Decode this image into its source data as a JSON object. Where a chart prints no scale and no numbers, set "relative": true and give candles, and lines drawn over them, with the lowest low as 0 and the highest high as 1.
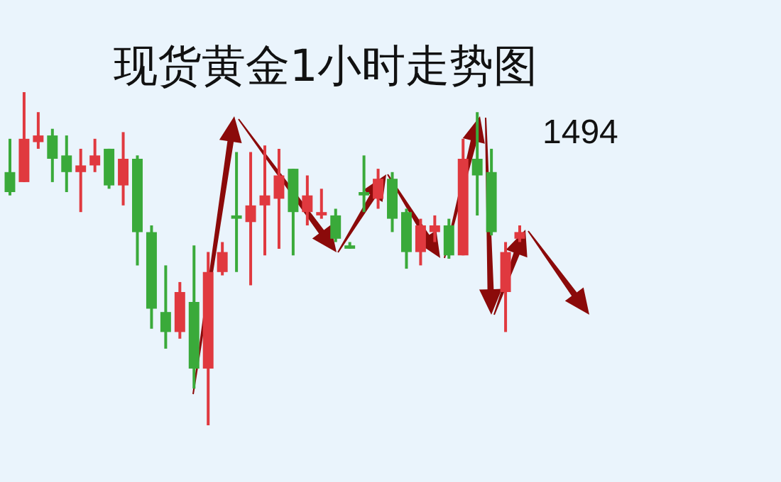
{
  "chart_data": {
    "type": "candlestick",
    "title": "现货黄金1小时走势图",
    "relative": true,
    "annotations": [
      "1494"
    ],
    "categories": [
      null,
      null,
      null,
      null,
      null,
      null,
      null,
      null,
      null,
      null,
      null,
      null,
      null,
      null,
      null,
      null,
      null,
      null,
      null,
      null,
      null,
      null,
      null,
      null,
      null,
      null,
      null,
      null,
      null,
      null,
      null,
      null,
      null,
      null,
      null,
      null,
      null
    ],
    "ohlc": [
      [
        0.76,
        0.86,
        0.69,
        0.7
      ],
      [
        0.73,
        1,
        0.73,
        0.86
      ],
      [
        0.85,
        0.94,
        0.83,
        0.87
      ],
      [
        0.87,
        0.89,
        0.73,
        0.8
      ],
      [
        0.81,
        0.87,
        0.7,
        0.76
      ],
      [
        0.76,
        0.83,
        0.64,
        0.78
      ],
      [
        0.78,
        0.86,
        0.76,
        0.81
      ],
      [
        0.83,
        0.83,
        0.71,
        0.72
      ],
      [
        0.72,
        0.88,
        0.66,
        0.8
      ],
      [
        0.8,
        0.81,
        0.48,
        0.58
      ],
      [
        0.58,
        0.6,
        0.29,
        0.35
      ],
      [
        0.34,
        0.48,
        0.23,
        0.28
      ],
      [
        0.28,
        0.43,
        0.26,
        0.4
      ],
      [
        0.37,
        0.54,
        0.11,
        0.17
      ],
      [
        0.17,
        0.52,
        0,
        0.46
      ],
      [
        0.46,
        0.55,
        0.45,
        0.52
      ],
      [
        0.63,
        0.82,
        0.46,
        0.62
      ],
      [
        0.61,
        0.82,
        0.42,
        0.66
      ],
      [
        0.66,
        0.84,
        0.51,
        0.69
      ],
      [
        0.68,
        0.83,
        0.53,
        0.75
      ],
      [
        0.77,
        0.77,
        0.51,
        0.64
      ],
      [
        0.64,
        0.75,
        0.6,
        0.69
      ],
      [
        0.63,
        0.71,
        0.62,
        0.64
      ],
      [
        0.63,
        0.65,
        0.55,
        0.56
      ],
      [
        0.54,
        0.55,
        0.53,
        0.53
      ],
      [
        0.7,
        0.81,
        0.64,
        0.69
      ],
      [
        0.68,
        0.77,
        0.65,
        0.74
      ],
      [
        0.74,
        0.76,
        0.58,
        0.62
      ],
      [
        0.64,
        0.65,
        0.47,
        0.52
      ],
      [
        0.52,
        0.62,
        0.48,
        0.6
      ],
      [
        0.58,
        0.63,
        0.55,
        0.6
      ],
      [
        0.6,
        0.62,
        0.5,
        0.51
      ],
      [
        0.51,
        0.86,
        0.51,
        0.8
      ],
      [
        0.8,
        0.94,
        0.63,
        0.75
      ],
      [
        0.76,
        0.83,
        0.57,
        0.58
      ],
      [
        0.4,
        0.55,
        0.28,
        0.52
      ],
      [
        0.56,
        0.6,
        0.55,
        0.58
      ]
    ],
    "colors": [
      "#3aaa3a",
      "#e0393f",
      "#e0393f",
      "#3aaa3a",
      "#3aaa3a",
      "#e0393f",
      "#e0393f",
      "#3aaa3a",
      "#e0393f",
      "#3aaa3a",
      "#3aaa3a",
      "#3aaa3a",
      "#e0393f",
      "#3aaa3a",
      "#e0393f",
      "#e0393f",
      "#3aaa3a",
      "#e0393f",
      "#e0393f",
      "#e0393f",
      "#3aaa3a",
      "#e0393f",
      "#e0393f",
      "#3aaa3a",
      "#3aaa3a",
      "#3aaa3a",
      "#e0393f",
      "#3aaa3a",
      "#3aaa3a",
      "#e0393f",
      "#e0393f",
      "#3aaa3a",
      "#e0393f",
      "#3aaa3a",
      "#3aaa3a",
      "#e0393f",
      "#e0393f"
    ]
  }
}
